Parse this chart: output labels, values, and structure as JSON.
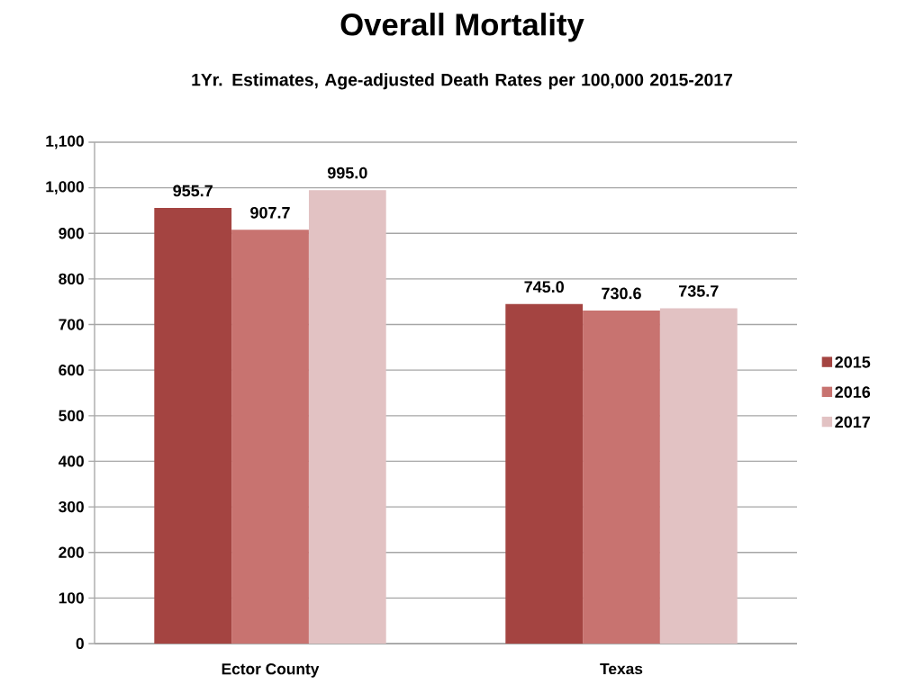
{
  "chart_data": {
    "type": "bar",
    "title": "Overall Mortality",
    "subtitle": "1Yr. Estimates, Age-adjusted Death Rates per 100,000 2015-2017",
    "categories": [
      "Ector County",
      "Texas"
    ],
    "series": [
      {
        "name": "2015",
        "color": "#a44441",
        "values": [
          955.7,
          745.0
        ],
        "value_labels": [
          "955.7",
          "745.0"
        ]
      },
      {
        "name": "2016",
        "color": "#c87370",
        "values": [
          907.7,
          730.6
        ],
        "value_labels": [
          "907.7",
          "730.6"
        ]
      },
      {
        "name": "2017",
        "color": "#e2c2c3",
        "values": [
          995.0,
          735.7
        ],
        "value_labels": [
          "995.0",
          "735.7"
        ]
      }
    ],
    "ylim": [
      0,
      1100
    ],
    "yticks": [
      0,
      100,
      200,
      300,
      400,
      500,
      600,
      700,
      800,
      900,
      {
        "value": 1000,
        "label": "1,000"
      },
      {
        "value": 1100,
        "label": "1,100"
      }
    ],
    "grid": "y",
    "legend": "right"
  }
}
